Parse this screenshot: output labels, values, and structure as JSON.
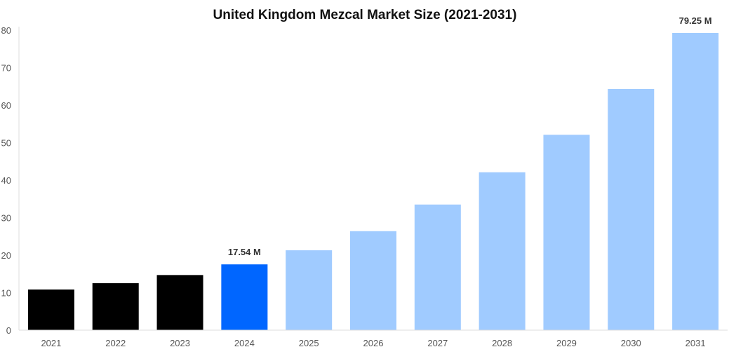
{
  "chart_data": {
    "type": "bar",
    "title": "United Kingdom Mezcal Market Size (2021-2031)",
    "xlabel": "",
    "ylabel": "",
    "categories": [
      "2021",
      "2022",
      "2023",
      "2024",
      "2025",
      "2026",
      "2027",
      "2028",
      "2029",
      "2030",
      "2031"
    ],
    "values": [
      10.84,
      12.52,
      14.7,
      17.54,
      21.3,
      26.4,
      33.5,
      42.1,
      52.1,
      64.3,
      79.25
    ],
    "ylim": [
      0,
      80
    ],
    "yticks": [
      0,
      10,
      20,
      30,
      40,
      50,
      60,
      70,
      80
    ],
    "grid": false,
    "data_labels": [
      {
        "category": "2024",
        "text": "17.54 M"
      },
      {
        "category": "2031",
        "text": "79.25 M"
      }
    ],
    "colors": {
      "historical": "#000000",
      "current": "#0066ff",
      "forecast": "#a0cbff"
    },
    "color_groups": [
      "historical",
      "historical",
      "historical",
      "current",
      "forecast",
      "forecast",
      "forecast",
      "forecast",
      "forecast",
      "forecast",
      "forecast"
    ]
  }
}
